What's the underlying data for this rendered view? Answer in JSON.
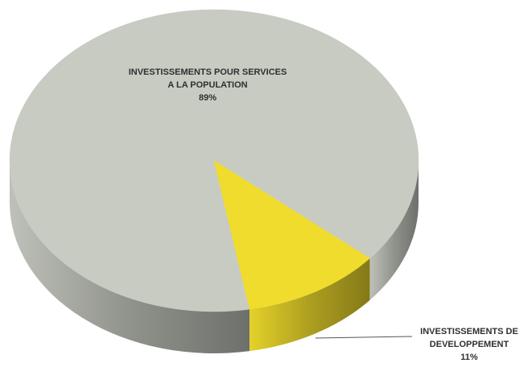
{
  "chart_data": {
    "type": "pie",
    "categories": [
      "INVESTISSEMENTS POUR SERVICES A LA POPULATION",
      "INVESTISSEMENTS DE DEVELOPPEMENT"
    ],
    "values": [
      89,
      11
    ],
    "value_labels": [
      "89%",
      "11%"
    ],
    "colors": [
      "#c8cbc2",
      "#f0dc2c"
    ]
  }
}
